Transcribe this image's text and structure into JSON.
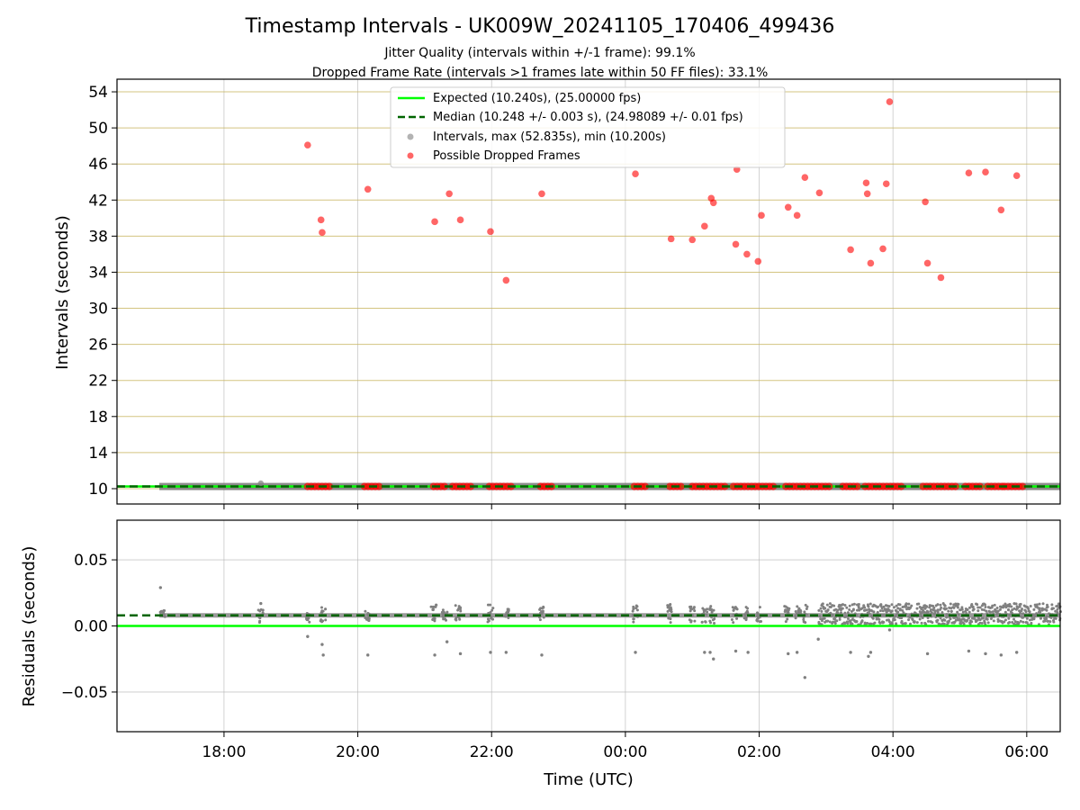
{
  "chart_data": {
    "type": "scatter",
    "title": "Timestamp Intervals - UK009W_20241105_170406_499436",
    "subtitle_1": "Jitter Quality (intervals within +/-1 frame): 99.1%",
    "subtitle_2": "Dropped Frame Rate (intervals >1 frames late within 50 FF files): 33.1%",
    "xlabel": "Time (UTC)",
    "x_tick_labels": [
      "18:00",
      "20:00",
      "22:00",
      "00:00",
      "02:00",
      "04:00",
      "06:00"
    ],
    "legend_placement": "upper-center",
    "grid": true,
    "colors": {
      "expected": "#00ff00",
      "median": "#006400",
      "intervals": "#808080",
      "dropped": "#ff0000",
      "hgrid_top": "#c8b560"
    },
    "top_panel": {
      "ylabel": "Intervals (seconds)",
      "ylim": [
        8.3,
        55.4
      ],
      "yticks": [
        10,
        14,
        18,
        22,
        26,
        30,
        34,
        38,
        42,
        46,
        50,
        54
      ],
      "legend": {
        "expected": "Expected (10.240s), (25.00000 fps)",
        "median": "Median (10.248 +/- 0.003 s), (24.98089 +/- 0.01 fps)",
        "intervals": "Intervals, max (52.835s), min (10.200s)",
        "dropped": "Possible Dropped Frames"
      },
      "expected_value": 10.24,
      "median_value": 10.248,
      "dropped_points": [
        [
          "19:15",
          48.1
        ],
        [
          "19:27",
          39.8
        ],
        [
          "19:28",
          38.4
        ],
        [
          "20:09",
          43.2
        ],
        [
          "21:09",
          39.6
        ],
        [
          "21:22",
          42.7
        ],
        [
          "21:32",
          39.8
        ],
        [
          "21:59",
          38.5
        ],
        [
          "22:13",
          33.1
        ],
        [
          "22:45",
          42.7
        ],
        [
          "00:09",
          44.9
        ],
        [
          "00:41",
          37.7
        ],
        [
          "01:00",
          37.6
        ],
        [
          "01:11",
          39.1
        ],
        [
          "01:17",
          42.2
        ],
        [
          "01:19",
          41.7
        ],
        [
          "01:39",
          37.1
        ],
        [
          "01:40",
          45.4
        ],
        [
          "01:49",
          36.0
        ],
        [
          "01:59",
          35.2
        ],
        [
          "02:02",
          40.3
        ],
        [
          "02:26",
          41.2
        ],
        [
          "02:34",
          40.3
        ],
        [
          "02:41",
          44.5
        ],
        [
          "02:54",
          42.8
        ],
        [
          "03:22",
          36.5
        ],
        [
          "03:36",
          43.9
        ],
        [
          "03:37",
          42.7
        ],
        [
          "03:40",
          35.0
        ],
        [
          "03:51",
          36.6
        ],
        [
          "03:54",
          43.8
        ],
        [
          "03:57",
          52.9
        ],
        [
          "04:29",
          41.8
        ],
        [
          "04:31",
          35.0
        ],
        [
          "04:43",
          33.4
        ],
        [
          "05:08",
          45.0
        ],
        [
          "05:23",
          45.1
        ],
        [
          "05:37",
          40.9
        ],
        [
          "05:51",
          44.7
        ]
      ],
      "interval_point": [
        "18:33",
        10.6
      ],
      "dropped_bands_at_10": [
        [
          "19:15",
          "19:36"
        ],
        [
          "20:06",
          "20:20"
        ],
        [
          "21:08",
          "21:20"
        ],
        [
          "21:25",
          "21:42"
        ],
        [
          "21:58",
          "22:20"
        ],
        [
          "22:44",
          "22:54"
        ],
        [
          "00:08",
          "00:20"
        ],
        [
          "00:40",
          "00:52"
        ],
        [
          "01:00",
          "01:30"
        ],
        [
          "01:37",
          "02:15"
        ],
        [
          "02:24",
          "02:50"
        ],
        [
          "02:53",
          "03:03"
        ],
        [
          "03:15",
          "03:28"
        ],
        [
          "03:35",
          "04:08"
        ],
        [
          "04:27",
          "04:57"
        ],
        [
          "05:05",
          "05:20"
        ],
        [
          "05:25",
          "05:38"
        ],
        [
          "05:40",
          "05:58"
        ]
      ]
    },
    "bottom_panel": {
      "ylabel": "Residuals (seconds)",
      "ylim": [
        -0.08,
        0.08
      ],
      "yticks": [
        -0.05,
        0.0,
        0.05
      ],
      "ytick_labels": [
        "−0.05",
        "0.00",
        "0.05"
      ],
      "expected_value": 0.0,
      "median_value": 0.008,
      "outlier_points": [
        [
          "17:03",
          0.029
        ],
        [
          "18:33",
          0.017
        ],
        [
          "19:15",
          -0.008
        ],
        [
          "19:28",
          -0.014
        ],
        [
          "19:29",
          -0.022
        ],
        [
          "20:09",
          -0.022
        ],
        [
          "21:09",
          -0.022
        ],
        [
          "21:20",
          -0.012
        ],
        [
          "21:32",
          -0.021
        ],
        [
          "21:59",
          -0.02
        ],
        [
          "22:13",
          -0.02
        ],
        [
          "22:45",
          -0.022
        ],
        [
          "00:09",
          -0.02
        ],
        [
          "01:11",
          -0.02
        ],
        [
          "01:16",
          -0.02
        ],
        [
          "01:19",
          -0.025
        ],
        [
          "01:39",
          -0.019
        ],
        [
          "01:50",
          -0.02
        ],
        [
          "02:26",
          -0.021
        ],
        [
          "02:34",
          -0.02
        ],
        [
          "02:41",
          -0.039
        ],
        [
          "02:53",
          -0.01
        ],
        [
          "03:22",
          -0.02
        ],
        [
          "03:38",
          -0.023
        ],
        [
          "03:40",
          -0.02
        ],
        [
          "03:57",
          -0.003
        ],
        [
          "04:31",
          -0.021
        ],
        [
          "05:08",
          -0.019
        ],
        [
          "05:23",
          -0.021
        ],
        [
          "05:37",
          -0.022
        ],
        [
          "05:51",
          -0.02
        ]
      ],
      "clusters": [
        [
          "17:05",
          0.007,
          0.012
        ],
        [
          "18:33",
          0.002,
          0.013
        ],
        [
          "19:15",
          0.002,
          0.01
        ],
        [
          "19:29",
          0.003,
          0.014
        ],
        [
          "20:08",
          0.004,
          0.012
        ],
        [
          "21:08",
          0.002,
          0.016
        ],
        [
          "21:18",
          0.002,
          0.013
        ],
        [
          "21:30",
          0.004,
          0.016
        ],
        [
          "21:59",
          0.003,
          0.016
        ],
        [
          "22:13",
          0.004,
          0.013
        ],
        [
          "22:45",
          0.002,
          0.015
        ],
        [
          "00:09",
          0.003,
          0.016
        ],
        [
          "00:40",
          0.002,
          0.017
        ],
        [
          "01:00",
          0.002,
          0.015
        ],
        [
          "01:11",
          0.002,
          0.016
        ],
        [
          "01:18",
          0.002,
          0.015
        ],
        [
          "01:38",
          0.002,
          0.016
        ],
        [
          "01:48",
          0.002,
          0.015
        ],
        [
          "02:00",
          0.002,
          0.016
        ],
        [
          "02:25",
          0.002,
          0.015
        ],
        [
          "02:35",
          0.002,
          0.015
        ],
        [
          "02:41",
          0.002,
          0.016
        ]
      ],
      "dense_from": "02:54",
      "dense_to": "06:30",
      "dense_range": [
        0.001,
        0.017
      ]
    }
  }
}
